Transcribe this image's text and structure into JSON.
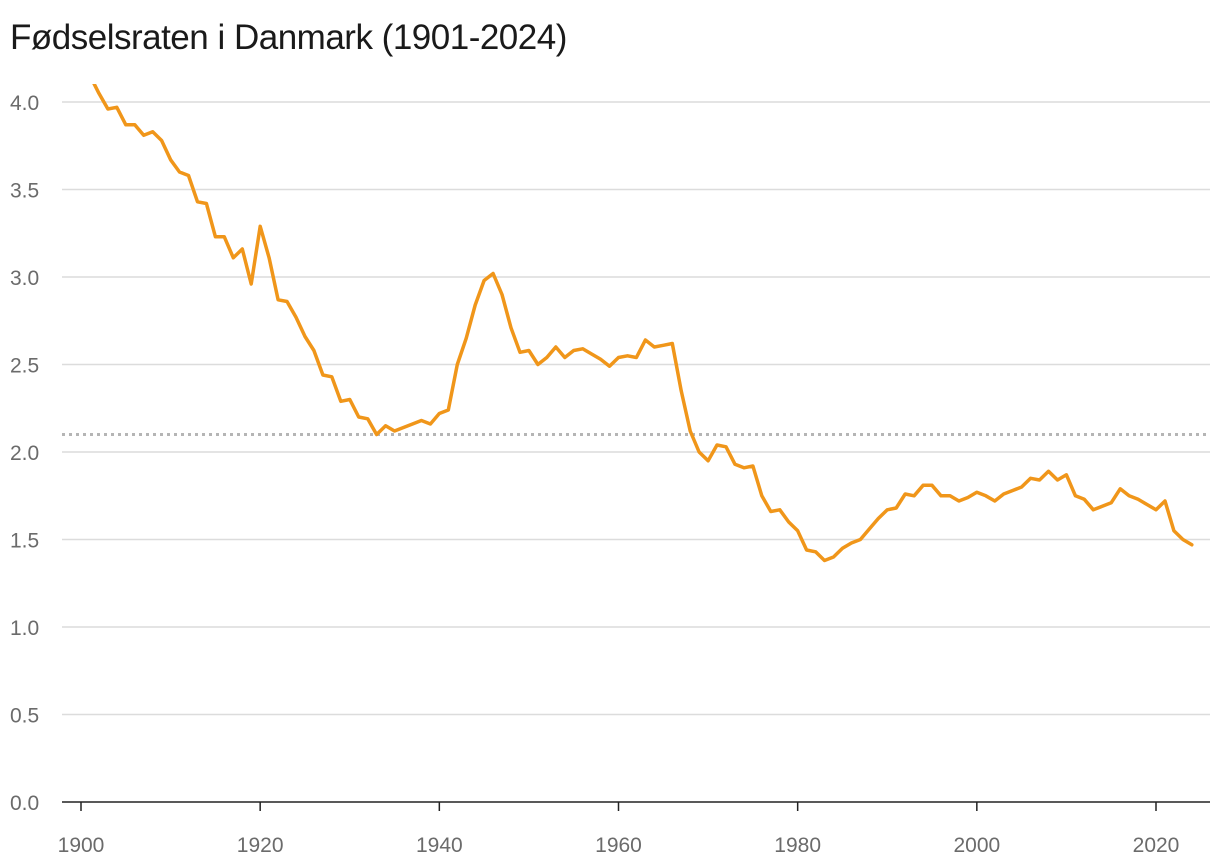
{
  "title": "Fødselsraten i Danmark (1901-2024)",
  "chart_data": {
    "type": "line",
    "title": "Fødselsraten i Danmark (1901-2024)",
    "xlabel": "",
    "ylabel": "",
    "xlim": [
      1900,
      2026
    ],
    "ylim": [
      0,
      4.0
    ],
    "y_ticks": [
      "0.0",
      "0.5",
      "1.0",
      "1.5",
      "2.0",
      "2.5",
      "3.0",
      "3.5",
      "4.0"
    ],
    "x_ticks": [
      "1900",
      "1920",
      "1940",
      "1960",
      "1980",
      "2000",
      "2020"
    ],
    "grid": true,
    "reference_line": {
      "y": 2.1,
      "style": "dotted"
    },
    "line_color": "#f0961a",
    "series": [
      {
        "x": [
          1901,
          1902,
          1903,
          1904,
          1905,
          1906,
          1907,
          1908,
          1909,
          1910,
          1911,
          1912,
          1913,
          1914,
          1915,
          1916,
          1917,
          1918,
          1919,
          1920,
          1921,
          1922,
          1923,
          1924,
          1925,
          1926,
          1927,
          1928,
          1929,
          1930,
          1931,
          1932,
          1933,
          1934,
          1935,
          1936,
          1937,
          1938,
          1939,
          1940,
          1941,
          1942,
          1943,
          1944,
          1945,
          1946,
          1947,
          1948,
          1949,
          1950,
          1951,
          1952,
          1953,
          1954,
          1955,
          1956,
          1957,
          1958,
          1959,
          1960,
          1961,
          1962,
          1963,
          1964,
          1965,
          1966,
          1967,
          1968,
          1969,
          1970,
          1971,
          1972,
          1973,
          1974,
          1975,
          1976,
          1977,
          1978,
          1979,
          1980,
          1981,
          1982,
          1983,
          1984,
          1985,
          1986,
          1987,
          1988,
          1989,
          1990,
          1991,
          1992,
          1993,
          1994,
          1995,
          1996,
          1997,
          1998,
          1999,
          2000,
          2001,
          2002,
          2003,
          2004,
          2005,
          2006,
          2007,
          2008,
          2009,
          2010,
          2011,
          2012,
          2013,
          2014,
          2015,
          2016,
          2017,
          2018,
          2019,
          2020,
          2021,
          2022,
          2023,
          2024
        ],
        "values": [
          4.15,
          4.05,
          3.96,
          3.97,
          3.87,
          3.87,
          3.81,
          3.83,
          3.78,
          3.67,
          3.6,
          3.58,
          3.43,
          3.42,
          3.23,
          3.23,
          3.11,
          3.16,
          2.96,
          3.29,
          3.11,
          2.87,
          2.86,
          2.77,
          2.66,
          2.58,
          2.44,
          2.43,
          2.29,
          2.3,
          2.2,
          2.19,
          2.1,
          2.15,
          2.12,
          2.14,
          2.16,
          2.18,
          2.16,
          2.22,
          2.24,
          2.5,
          2.65,
          2.84,
          2.98,
          3.02,
          2.9,
          2.71,
          2.57,
          2.58,
          2.5,
          2.54,
          2.6,
          2.54,
          2.58,
          2.59,
          2.56,
          2.53,
          2.49,
          2.54,
          2.55,
          2.54,
          2.64,
          2.6,
          2.61,
          2.62,
          2.35,
          2.12,
          2.0,
          1.95,
          2.04,
          2.03,
          1.93,
          1.91,
          1.92,
          1.75,
          1.66,
          1.67,
          1.6,
          1.55,
          1.44,
          1.43,
          1.38,
          1.4,
          1.45,
          1.48,
          1.5,
          1.56,
          1.62,
          1.67,
          1.68,
          1.76,
          1.75,
          1.81,
          1.81,
          1.75,
          1.75,
          1.72,
          1.74,
          1.77,
          1.75,
          1.72,
          1.76,
          1.78,
          1.8,
          1.85,
          1.84,
          1.89,
          1.84,
          1.87,
          1.75,
          1.73,
          1.67,
          1.69,
          1.71,
          1.79,
          1.75,
          1.73,
          1.7,
          1.67,
          1.72,
          1.55,
          1.5,
          1.47
        ]
      }
    ]
  }
}
